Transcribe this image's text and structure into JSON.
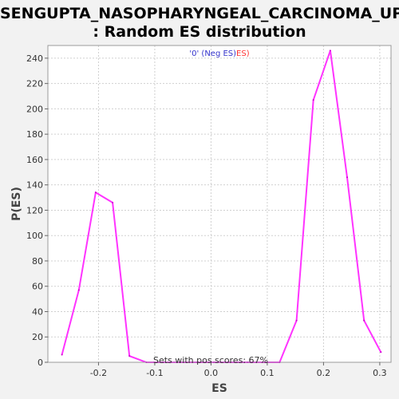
{
  "chart_data": {
    "type": "line",
    "title_lines": [
      "SENGUPTA_NASOPHARYNGEAL_CARCINOMA_UP",
      ": Random ES distribution"
    ],
    "xlabel": "ES",
    "ylabel": "P(ES)",
    "xlim": [
      -0.29,
      0.32
    ],
    "ylim": [
      0,
      250
    ],
    "xticks": [
      -0.2,
      -0.1,
      0.0,
      0.1,
      0.2,
      0.3
    ],
    "xtick_labels": [
      "-0.2",
      "-0.1",
      "0.0",
      "0.1",
      "0.2",
      "0.3"
    ],
    "yticks": [
      0,
      20,
      40,
      60,
      80,
      100,
      120,
      140,
      160,
      180,
      200,
      220,
      240
    ],
    "grid": true,
    "legend": {
      "placement": "top-center",
      "parts": [
        {
          "text": "'0' (Neg ES)",
          "color": "#3333cc"
        },
        {
          "text": "ES)",
          "color": "#ff3333"
        }
      ]
    },
    "annotation": "Sets with pos scores: 67%",
    "series": [
      {
        "color": "#ff33ff",
        "x": [
          -0.265,
          -0.235,
          -0.205,
          -0.175,
          -0.145,
          -0.115,
          -0.085,
          -0.055,
          -0.025,
          0.005,
          0.035,
          0.065,
          0.095,
          0.122,
          0.152,
          0.182,
          0.212,
          0.242,
          0.272,
          0.302
        ],
        "y": [
          6,
          57,
          134,
          126,
          5,
          0,
          0,
          0,
          0,
          0,
          0,
          0,
          0,
          0,
          33,
          207,
          246,
          146,
          33,
          8
        ]
      }
    ]
  }
}
